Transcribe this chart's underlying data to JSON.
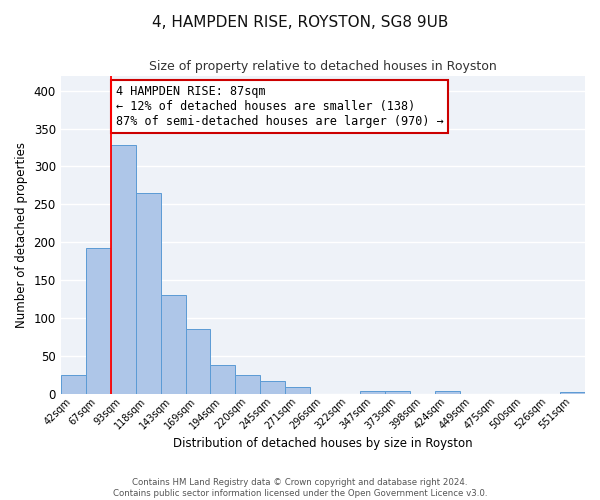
{
  "title_line1": "4, HAMPDEN RISE, ROYSTON, SG8 9UB",
  "title_line2": "Size of property relative to detached houses in Royston",
  "xlabel": "Distribution of detached houses by size in Royston",
  "ylabel": "Number of detached properties",
  "bar_labels": [
    "42sqm",
    "67sqm",
    "93sqm",
    "118sqm",
    "143sqm",
    "169sqm",
    "194sqm",
    "220sqm",
    "245sqm",
    "271sqm",
    "296sqm",
    "322sqm",
    "347sqm",
    "373sqm",
    "398sqm",
    "424sqm",
    "449sqm",
    "475sqm",
    "500sqm",
    "526sqm",
    "551sqm"
  ],
  "bar_values": [
    25,
    193,
    328,
    265,
    130,
    86,
    38,
    25,
    17,
    9,
    0,
    0,
    4,
    3,
    0,
    3,
    0,
    0,
    0,
    0,
    2
  ],
  "bar_color": "#aec6e8",
  "bar_edge_color": "#5b9bd5",
  "red_line_index": 2,
  "ylim": [
    0,
    420
  ],
  "yticks": [
    0,
    50,
    100,
    150,
    200,
    250,
    300,
    350,
    400
  ],
  "annotation_title": "4 HAMPDEN RISE: 87sqm",
  "annotation_line1": "← 12% of detached houses are smaller (138)",
  "annotation_line2": "87% of semi-detached houses are larger (970) →",
  "annotation_box_color": "#ffffff",
  "annotation_box_edge_color": "#cc0000",
  "footer_line1": "Contains HM Land Registry data © Crown copyright and database right 2024.",
  "footer_line2": "Contains public sector information licensed under the Open Government Licence v3.0.",
  "background_color": "#eef2f8",
  "grid_color": "#ffffff",
  "figure_bg": "#ffffff"
}
